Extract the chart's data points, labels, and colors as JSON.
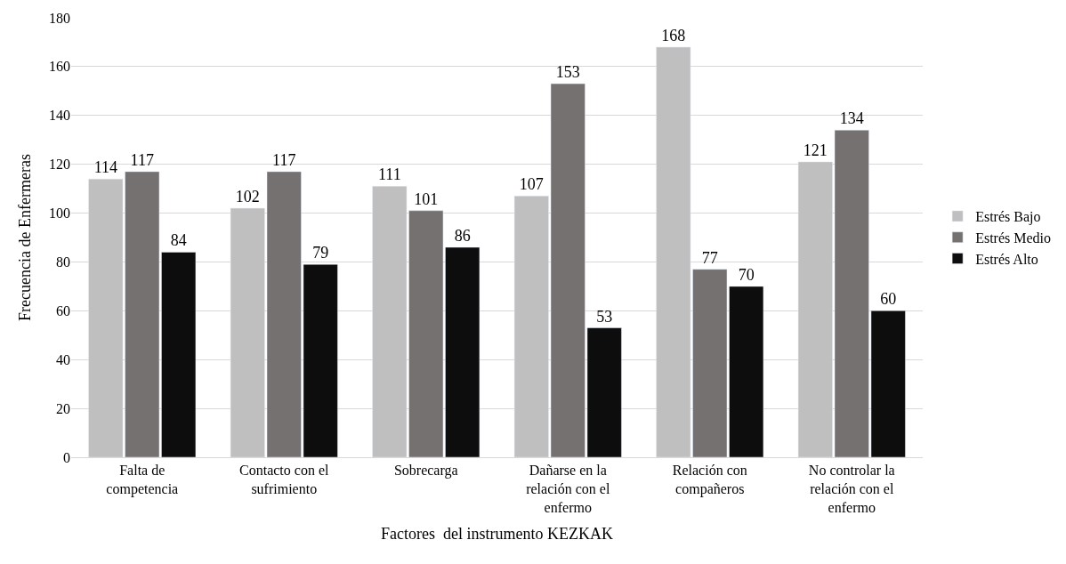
{
  "chart_data": {
    "type": "bar",
    "xlabel": "Factores  del instrumento KEZKAK",
    "ylabel": "Frecuencia de Enfermeras",
    "categories": [
      "Falta de competencia",
      "Contacto con el sufrimiento",
      "Sobrecarga",
      "Dañarse en la relación con el enfermo",
      "Relación con compañeros",
      "No controlar la relación con el enfermo"
    ],
    "series": [
      {
        "name": "Estrés Bajo",
        "color": "#bfbfbf",
        "values": [
          114,
          102,
          111,
          107,
          168,
          121
        ]
      },
      {
        "name": "Estrés Medio",
        "color": "#767171",
        "values": [
          117,
          117,
          101,
          153,
          77,
          134
        ]
      },
      {
        "name": "Estrés Alto",
        "color": "#0d0d0d",
        "values": [
          84,
          79,
          86,
          53,
          70,
          60
        ]
      }
    ],
    "ylim": [
      0,
      180
    ],
    "yticks": [
      0,
      20,
      40,
      60,
      80,
      100,
      120,
      140,
      160,
      180
    ],
    "grid": "y",
    "legend": "right",
    "data_labels": true
  }
}
